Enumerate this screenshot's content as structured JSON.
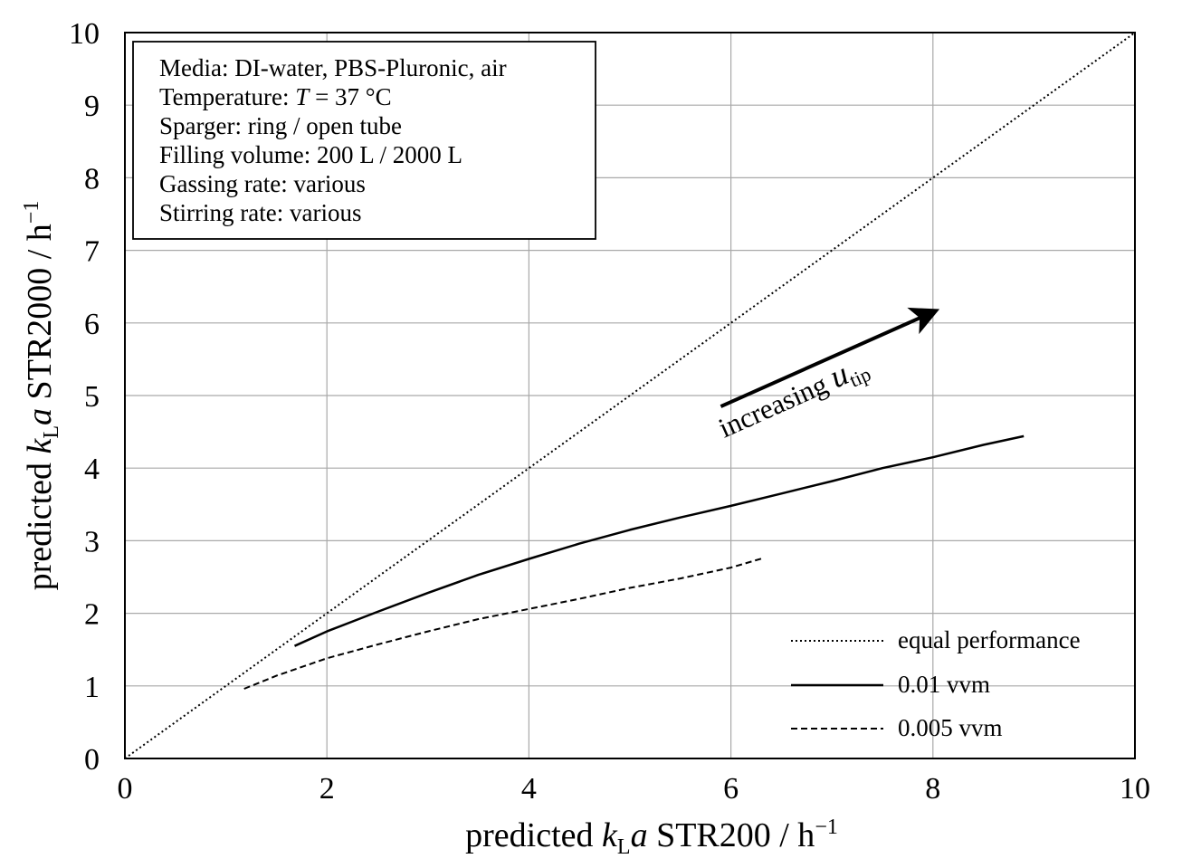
{
  "chart_data": {
    "type": "line",
    "xlabel": {
      "prefix": "predicted ",
      "k": "k",
      "sub": "L",
      "a": "a",
      "suffix": " STR200  /  h",
      "sup": "−1"
    },
    "ylabel": {
      "prefix": "predicted ",
      "k": "k",
      "sub": "L",
      "a": "a",
      "suffix": " STR2000  /  h",
      "sup": "−1"
    },
    "xlim": [
      0,
      10
    ],
    "ylim": [
      0,
      10
    ],
    "x_ticks": [
      "0",
      "2",
      "4",
      "6",
      "8",
      "10"
    ],
    "y_ticks": [
      "0",
      "1",
      "2",
      "3",
      "4",
      "5",
      "6",
      "7",
      "8",
      "9",
      "10"
    ],
    "grid": true,
    "legend_position": "bottom-right",
    "info_box": {
      "lines": [
        {
          "text": "Media: DI-water, PBS-Pluronic, air"
        },
        {
          "text": "Temperature: ",
          "italic": "T",
          "rest": " = 37 °C"
        },
        {
          "text": "Sparger: ring  /  open tube"
        },
        {
          "text": "Filling volume: 200 L  /  2000 L"
        },
        {
          "text": "Gassing rate: various"
        },
        {
          "text": "Stirring rate: various"
        }
      ]
    },
    "annotation": {
      "text": "increasing ",
      "italic": "u",
      "sub": "tip"
    },
    "arrow_data": {
      "from": [
        5.9,
        4.85
      ],
      "to": [
        8.0,
        6.15
      ]
    },
    "series": [
      {
        "name": "equal performance",
        "style": "dotted",
        "color": "#000000",
        "x": [
          0,
          10
        ],
        "y": [
          0,
          10
        ]
      },
      {
        "name": "0.01 vvm",
        "style": "solid",
        "color": "#000000",
        "x": [
          1.68,
          2.0,
          2.5,
          3.0,
          3.5,
          4.0,
          4.5,
          5.0,
          5.5,
          6.0,
          6.5,
          7.0,
          7.5,
          8.0,
          8.5,
          8.9
        ],
        "y": [
          1.55,
          1.75,
          2.02,
          2.28,
          2.53,
          2.75,
          2.96,
          3.15,
          3.32,
          3.48,
          3.65,
          3.82,
          4.0,
          4.15,
          4.32,
          4.44
        ]
      },
      {
        "name": "0.005 vvm",
        "style": "dashed",
        "color": "#000000",
        "x": [
          1.18,
          1.5,
          2.0,
          2.5,
          3.0,
          3.5,
          4.0,
          4.5,
          5.0,
          5.5,
          6.0,
          6.32
        ],
        "y": [
          0.96,
          1.14,
          1.38,
          1.57,
          1.75,
          1.92,
          2.06,
          2.2,
          2.35,
          2.48,
          2.63,
          2.76
        ]
      }
    ]
  }
}
